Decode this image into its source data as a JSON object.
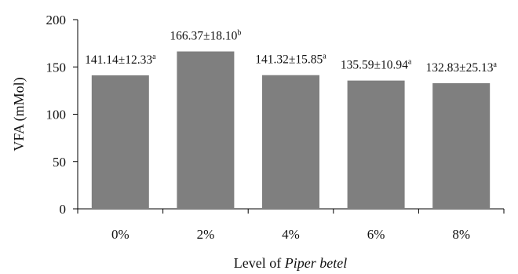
{
  "chart_data": {
    "type": "bar",
    "categories": [
      "0%",
      "2%",
      "4%",
      "6%",
      "8%"
    ],
    "values": [
      141.14,
      166.37,
      141.32,
      135.59,
      132.83
    ],
    "data_labels": [
      {
        "main": "141.14±12.33",
        "sup": "a"
      },
      {
        "main": "166.37±18.10",
        "sup": "b"
      },
      {
        "main": "141.32±15.85",
        "sup": "a"
      },
      {
        "main": "135.59±10.94",
        "sup": "a"
      },
      {
        "main": "132.83±25.13",
        "sup": "a"
      }
    ],
    "xlabel_prefix": "Level of ",
    "xlabel_italic": "Piper betel",
    "ylabel": "VFA (mMol)",
    "ylim": [
      0,
      200
    ],
    "yticks": [
      "0",
      "50",
      "100",
      "150",
      "200"
    ],
    "bar_color": "#7f7f7f",
    "grid": false,
    "legend": "none"
  }
}
